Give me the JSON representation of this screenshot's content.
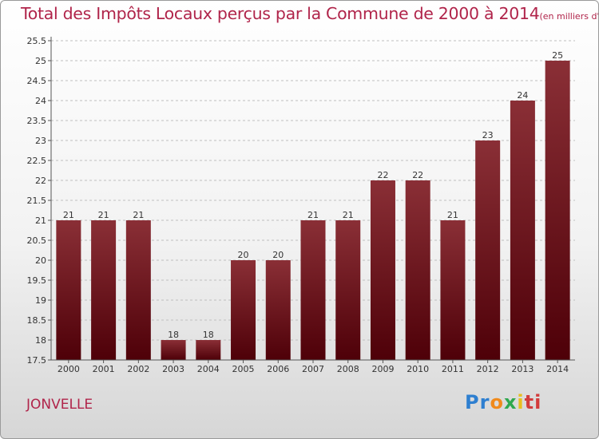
{
  "header": {
    "title": "Total des Impôts Locaux perçus par la Commune de 2000 à 2014",
    "unit": "(en milliers d'€)"
  },
  "footer": {
    "commune": "JONVELLE",
    "logo_letters": [
      "P",
      "r",
      "o",
      "x",
      "i",
      "ti"
    ]
  },
  "colors": {
    "title": "#b0244a",
    "bar_top": "#8a2f36",
    "bar_bottom": "#4e0008",
    "grid": "#bfbfbf"
  },
  "chart_data": {
    "type": "bar",
    "title": "Total des Impôts Locaux perçus par la Commune de 2000 à 2014",
    "xlabel": "",
    "ylabel": "",
    "categories": [
      "2000",
      "2001",
      "2002",
      "2003",
      "2004",
      "2005",
      "2006",
      "2007",
      "2008",
      "2009",
      "2010",
      "2011",
      "2012",
      "2013",
      "2014"
    ],
    "values": [
      21,
      21,
      21,
      18,
      18,
      20,
      20,
      21,
      21,
      22,
      22,
      21,
      23,
      24,
      25
    ],
    "ylim": [
      17.5,
      25.5
    ],
    "yticks": [
      "17.5",
      "18",
      "18.5",
      "19",
      "19.5",
      "20",
      "20.5",
      "21",
      "21.5",
      "22",
      "22.5",
      "23",
      "23.5",
      "24",
      "24.5",
      "25",
      "25.5"
    ],
    "grid": "horizontal dashed",
    "legend": "none"
  }
}
